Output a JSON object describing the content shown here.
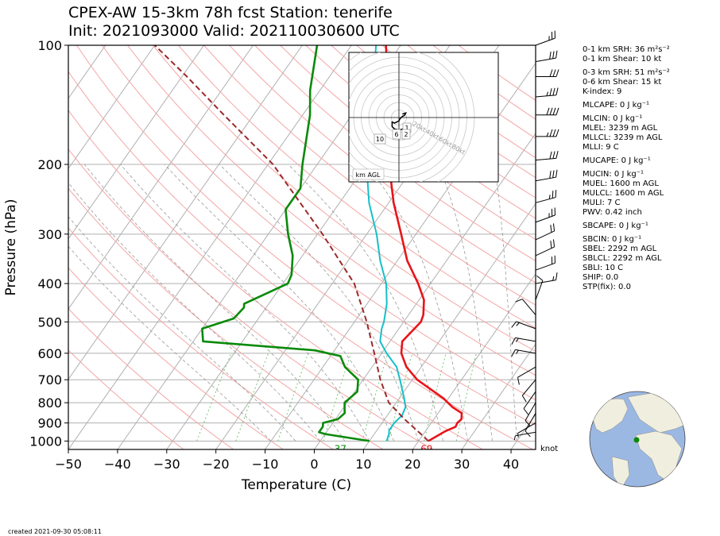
{
  "header": {
    "title_line1": "CPEX-AW 15-3km  78h fcst  Station: tenerife",
    "title_line2": "Init: 2021093000  Valid: 202110030600 UTC"
  },
  "footer": {
    "created": "created 2021-09-30 05:08:11"
  },
  "barb_unit": "knot",
  "indices": [
    {
      "label": "0-1 km SRH: 36 m²s⁻²"
    },
    {
      "label": "0-1 km Shear: 10 kt"
    },
    {
      "label": "0-3 km SRH: 51 m²s⁻²"
    },
    {
      "label": "0-6 km Shear: 15 kt"
    },
    {
      "label": "K-index: 9"
    },
    {
      "label": "MLCAPE: 0 J kg⁻¹"
    },
    {
      "label": "MLCIN: 0 J kg⁻¹"
    },
    {
      "label": "MLEL: 3239 m AGL"
    },
    {
      "label": "MLLCL: 3239 m AGL"
    },
    {
      "label": "MLLI: 9 C"
    },
    {
      "label": "MUCAPE: 0 J kg⁻¹"
    },
    {
      "label": "MUCIN: 0 J kg⁻¹"
    },
    {
      "label": "MUEL: 1600 m AGL"
    },
    {
      "label": "MULCL: 1600 m AGL"
    },
    {
      "label": "MULI: 7 C"
    },
    {
      "label": "PWV: 0.42 inch"
    },
    {
      "label": "SBCAPE: 0 J kg⁻¹"
    },
    {
      "label": "SBCIN: 0 J kg⁻¹"
    },
    {
      "label": "SBEL: 2292 m AGL"
    },
    {
      "label": "SBLCL: 2292 m AGL"
    },
    {
      "label": "SBLI: 10 C"
    },
    {
      "label": "SHIP: 0.0"
    },
    {
      "label": "STP(fix): 0.0"
    }
  ],
  "chart_data": {
    "type": "line",
    "subtype": "skew-T log-p",
    "xlabel": "Temperature (C)",
    "ylabel": "Pressure (hPa)",
    "xlim": [
      -50,
      45
    ],
    "ylim": [
      1050,
      100
    ],
    "y_scale": "log",
    "xticks": [
      -50,
      -40,
      -30,
      -20,
      -10,
      0,
      10,
      20,
      30,
      40
    ],
    "yticks": [
      100,
      200,
      300,
      400,
      500,
      600,
      700,
      800,
      900,
      1000
    ],
    "grid": true,
    "colors": {
      "temperature": "#e8141a",
      "dewpoint": "#0a8a0a",
      "wetbulb": "#17bfc7",
      "parcel": "#9c2a2a",
      "dry_adiabat": "#f4a6a6",
      "moist_adiabat": "#9a9a9a",
      "mixing_ratio": "#7cc47c"
    },
    "series": [
      {
        "key": "temperature",
        "values": [
          {
            "p": 1000,
            "t": 22.0
          },
          {
            "p": 945,
            "t": 24.0
          },
          {
            "p": 920,
            "t": 25.5
          },
          {
            "p": 900,
            "t": 25.3
          },
          {
            "p": 880,
            "t": 25.6
          },
          {
            "p": 850,
            "t": 24.8
          },
          {
            "p": 820,
            "t": 22.0
          },
          {
            "p": 780,
            "t": 19.0
          },
          {
            "p": 700,
            "t": 11.0
          },
          {
            "p": 650,
            "t": 7.0
          },
          {
            "p": 600,
            "t": 4.0
          },
          {
            "p": 560,
            "t": 2.5
          },
          {
            "p": 500,
            "t": 3.5
          },
          {
            "p": 480,
            "t": 3.0
          },
          {
            "p": 440,
            "t": 1.0
          },
          {
            "p": 400,
            "t": -2.5
          },
          {
            "p": 350,
            "t": -8.0
          },
          {
            "p": 300,
            "t": -13.0
          },
          {
            "p": 250,
            "t": -19.0
          },
          {
            "p": 210,
            "t": -24.0
          },
          {
            "p": 180,
            "t": -28.0
          },
          {
            "p": 150,
            "t": -32.0
          },
          {
            "p": 125,
            "t": -37.0
          },
          {
            "p": 112,
            "t": -40.0
          },
          {
            "p": 100,
            "t": -43.0
          }
        ]
      },
      {
        "key": "wetbulb",
        "values": [
          {
            "p": 1000,
            "t": 13.5
          },
          {
            "p": 960,
            "t": 13.0
          },
          {
            "p": 940,
            "t": 12.5
          },
          {
            "p": 900,
            "t": 12.5
          },
          {
            "p": 860,
            "t": 13.0
          },
          {
            "p": 820,
            "t": 12.5
          },
          {
            "p": 780,
            "t": 11.0
          },
          {
            "p": 700,
            "t": 7.5
          },
          {
            "p": 650,
            "t": 5.0
          },
          {
            "p": 600,
            "t": 1.0
          },
          {
            "p": 560,
            "t": -2.0
          },
          {
            "p": 520,
            "t": -3.5
          },
          {
            "p": 500,
            "t": -4.0
          },
          {
            "p": 450,
            "t": -6.0
          },
          {
            "p": 400,
            "t": -9.0
          },
          {
            "p": 350,
            "t": -13.5
          },
          {
            "p": 300,
            "t": -18.0
          },
          {
            "p": 250,
            "t": -24.0
          },
          {
            "p": 200,
            "t": -30.0
          },
          {
            "p": 170,
            "t": -33.0
          },
          {
            "p": 140,
            "t": -38.0
          },
          {
            "p": 120,
            "t": -41.0
          },
          {
            "p": 100,
            "t": -45.0
          }
        ]
      },
      {
        "key": "dewpoint",
        "values": [
          {
            "p": 1000,
            "t": 10.0
          },
          {
            "p": 960,
            "t": 0.0
          },
          {
            "p": 950,
            "t": -1.5
          },
          {
            "p": 920,
            "t": -1.5
          },
          {
            "p": 900,
            "t": -2.0
          },
          {
            "p": 880,
            "t": 0.5
          },
          {
            "p": 850,
            "t": 1.0
          },
          {
            "p": 800,
            "t": -0.5
          },
          {
            "p": 750,
            "t": 0.5
          },
          {
            "p": 700,
            "t": -1.0
          },
          {
            "p": 650,
            "t": -5.5
          },
          {
            "p": 610,
            "t": -8.0
          },
          {
            "p": 590,
            "t": -14.0
          },
          {
            "p": 560,
            "t": -38.0
          },
          {
            "p": 520,
            "t": -40.0
          },
          {
            "p": 490,
            "t": -35.0
          },
          {
            "p": 460,
            "t": -34.5
          },
          {
            "p": 450,
            "t": -35.0
          },
          {
            "p": 400,
            "t": -29.0
          },
          {
            "p": 380,
            "t": -29.5
          },
          {
            "p": 340,
            "t": -32.0
          },
          {
            "p": 300,
            "t": -36.0
          },
          {
            "p": 260,
            "t": -40.0
          },
          {
            "p": 230,
            "t": -40.0
          },
          {
            "p": 200,
            "t": -43.0
          },
          {
            "p": 150,
            "t": -48.5
          },
          {
            "p": 130,
            "t": -52.0
          },
          {
            "p": 100,
            "t": -57.0
          }
        ]
      },
      {
        "key": "parcel",
        "values": [
          {
            "p": 1000,
            "t": 22.0
          },
          {
            "p": 960,
            "t": 19.5
          },
          {
            "p": 920,
            "t": 16.8
          },
          {
            "p": 880,
            "t": 14.0
          },
          {
            "p": 850,
            "t": 12.0
          },
          {
            "p": 800,
            "t": 8.5
          },
          {
            "p": 700,
            "t": 3.5
          },
          {
            "p": 600,
            "t": -1.5
          },
          {
            "p": 500,
            "t": -7.5
          },
          {
            "p": 400,
            "t": -15.5
          },
          {
            "p": 300,
            "t": -29.0
          },
          {
            "p": 250,
            "t": -38.0
          },
          {
            "p": 200,
            "t": -49.0
          },
          {
            "p": 150,
            "t": -66.0
          },
          {
            "p": 120,
            "t": -79.0
          },
          {
            "p": 100,
            "t": -90.0
          }
        ]
      }
    ],
    "annotations": [
      {
        "text": "37",
        "t": 5.0,
        "p": 1010,
        "color": "#0a8a0a"
      },
      {
        "text": "69",
        "t": 22.5,
        "p": 1010,
        "color": "#e8141a"
      }
    ],
    "wind_barbs": [
      {
        "p": 100,
        "speed": 25,
        "dir": 250
      },
      {
        "p": 110,
        "speed": 30,
        "dir": 260
      },
      {
        "p": 120,
        "speed": 30,
        "dir": 270
      },
      {
        "p": 135,
        "speed": 35,
        "dir": 265
      },
      {
        "p": 150,
        "speed": 40,
        "dir": 270
      },
      {
        "p": 170,
        "speed": 35,
        "dir": 270
      },
      {
        "p": 195,
        "speed": 30,
        "dir": 265
      },
      {
        "p": 220,
        "speed": 30,
        "dir": 260
      },
      {
        "p": 250,
        "speed": 25,
        "dir": 255
      },
      {
        "p": 280,
        "speed": 25,
        "dir": 250
      },
      {
        "p": 310,
        "speed": 20,
        "dir": 245
      },
      {
        "p": 340,
        "speed": 20,
        "dir": 245
      },
      {
        "p": 370,
        "speed": 20,
        "dir": 250
      },
      {
        "p": 400,
        "speed": 15,
        "dir": 260
      },
      {
        "p": 440,
        "speed": 10,
        "dir": 200
      },
      {
        "p": 480,
        "speed": 10,
        "dir": 140
      },
      {
        "p": 520,
        "speed": 15,
        "dir": 110
      },
      {
        "p": 560,
        "speed": 15,
        "dir": 100
      },
      {
        "p": 600,
        "speed": 15,
        "dir": 100
      },
      {
        "p": 650,
        "speed": 10,
        "dir": 60
      },
      {
        "p": 700,
        "speed": 10,
        "dir": 40
      },
      {
        "p": 750,
        "speed": 10,
        "dir": 35
      },
      {
        "p": 800,
        "speed": 10,
        "dir": 30
      },
      {
        "p": 850,
        "speed": 10,
        "dir": 30
      },
      {
        "p": 900,
        "speed": 5,
        "dir": 60
      },
      {
        "p": 950,
        "speed": 5,
        "dir": 80
      }
    ],
    "hodograph": {
      "ring_labels": [
        "20kt",
        "40kt",
        "60kt",
        "80kt"
      ],
      "height_labels": [
        "1",
        "2",
        "6",
        "10"
      ],
      "unit_label": "km AGL",
      "trace_uv_kt": [
        [
          3,
          3
        ],
        [
          6,
          4
        ],
        [
          5,
          2
        ],
        [
          3,
          1
        ],
        [
          1,
          -1
        ],
        [
          0,
          -3
        ],
        [
          -2,
          -4
        ],
        [
          -4,
          -5
        ],
        [
          -6,
          -4
        ],
        [
          -6,
          -8
        ],
        [
          -4,
          -10
        ],
        [
          0,
          -11
        ],
        [
          4,
          -10
        ],
        [
          6,
          -8
        ]
      ]
    },
    "globe": {
      "marker_lat": 28.3,
      "marker_lon": -16.5
    }
  }
}
